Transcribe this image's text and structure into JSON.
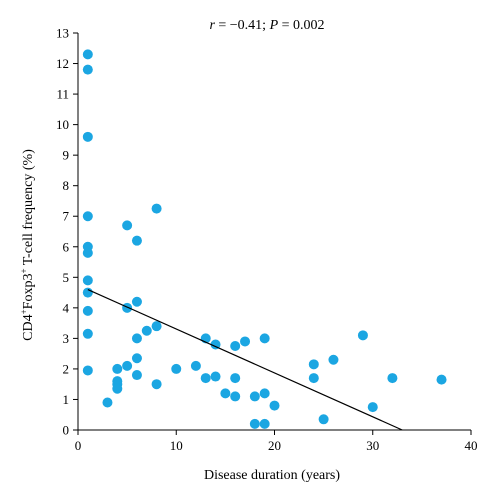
{
  "chart_data": {
    "type": "scatter",
    "annotation": "r = −0.41; P = 0.002",
    "xlabel": "Disease duration (years)",
    "ylabel_parts": [
      "CD4",
      "+",
      "Foxp3",
      "+",
      " T-cell frequency (%)"
    ],
    "xlim": [
      0,
      40
    ],
    "ylim": [
      0,
      13
    ],
    "xticks": [
      0,
      10,
      20,
      30,
      40
    ],
    "yticks": [
      0,
      1,
      2,
      3,
      4,
      5,
      6,
      7,
      8,
      9,
      10,
      11,
      12,
      13
    ],
    "point_color": "#1ba6e2",
    "points": [
      [
        1,
        12.3
      ],
      [
        1,
        11.8
      ],
      [
        1,
        9.6
      ],
      [
        1,
        7.0
      ],
      [
        1,
        6.0
      ],
      [
        1,
        5.8
      ],
      [
        1,
        4.9
      ],
      [
        1,
        4.5
      ],
      [
        1,
        3.9
      ],
      [
        1,
        3.15
      ],
      [
        1,
        1.95
      ],
      [
        3,
        0.9
      ],
      [
        4,
        2.0
      ],
      [
        4,
        1.6
      ],
      [
        4,
        1.5
      ],
      [
        4,
        1.35
      ],
      [
        5,
        6.7
      ],
      [
        5,
        4.0
      ],
      [
        5,
        2.1
      ],
      [
        6,
        6.2
      ],
      [
        6,
        4.2
      ],
      [
        6,
        3.0
      ],
      [
        6,
        2.35
      ],
      [
        6,
        1.8
      ],
      [
        7,
        3.25
      ],
      [
        8,
        7.25
      ],
      [
        8,
        3.4
      ],
      [
        8,
        1.5
      ],
      [
        10,
        2.0
      ],
      [
        12,
        2.1
      ],
      [
        13,
        3.0
      ],
      [
        13,
        1.7
      ],
      [
        14,
        2.8
      ],
      [
        14,
        1.75
      ],
      [
        15,
        1.2
      ],
      [
        16,
        2.75
      ],
      [
        16,
        1.7
      ],
      [
        16,
        1.1
      ],
      [
        17,
        2.9
      ],
      [
        18,
        1.1
      ],
      [
        18,
        0.2
      ],
      [
        19,
        3.0
      ],
      [
        19,
        1.2
      ],
      [
        19,
        0.2
      ],
      [
        20,
        0.8
      ],
      [
        24,
        2.15
      ],
      [
        24,
        1.7
      ],
      [
        25,
        0.35
      ],
      [
        26,
        2.3
      ],
      [
        29,
        3.1
      ],
      [
        30,
        0.75
      ],
      [
        32,
        1.7
      ],
      [
        37,
        1.65
      ]
    ],
    "trendline": [
      [
        1,
        4.6
      ],
      [
        33,
        0
      ]
    ],
    "grid": false,
    "legend": "none"
  }
}
